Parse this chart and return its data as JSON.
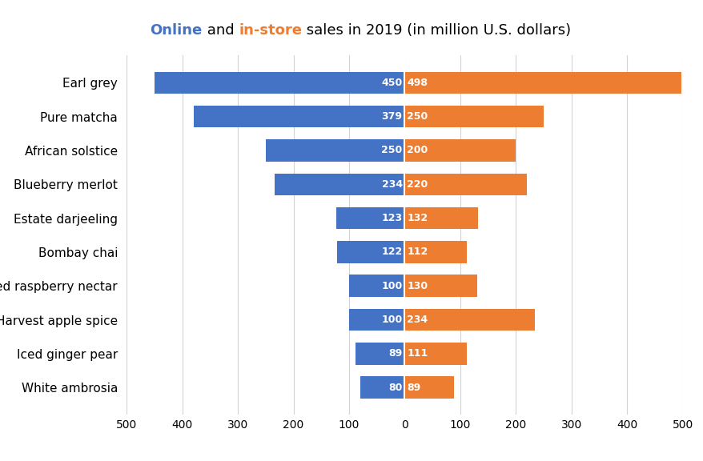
{
  "categories": [
    "White ambrosia",
    "Iced ginger pear",
    "Harvest apple spice",
    "Iced raspberry nectar",
    "Bombay chai",
    "Estate darjeeling",
    "Blueberry merlot",
    "African solstice",
    "Pure matcha",
    "Earl grey"
  ],
  "online": [
    80,
    89,
    100,
    100,
    122,
    123,
    234,
    250,
    379,
    450
  ],
  "instore": [
    89,
    111,
    234,
    130,
    112,
    132,
    220,
    200,
    250,
    498
  ],
  "online_color": "#4472C4",
  "instore_color": "#ED7D31",
  "title_online": "Online",
  "title_instore": "in-store",
  "title_suffix": " sales in 2019 (in million U.S. dollars)",
  "title_online_color": "#4472C4",
  "title_instore_color": "#ED7D31",
  "title_black_color": "#000000",
  "xlim_left": -500,
  "xlim_right": 500,
  "xticks": [
    -500,
    -400,
    -300,
    -200,
    -100,
    0,
    100,
    200,
    300,
    400,
    500
  ],
  "xtick_labels": [
    "500",
    "400",
    "300",
    "200",
    "100",
    "0",
    "100",
    "200",
    "300",
    "400",
    "500"
  ],
  "bar_height": 0.65,
  "label_fontsize": 9,
  "tick_fontsize": 10,
  "category_fontsize": 11,
  "title_fontsize": 13,
  "background_color": "#FFFFFF",
  "grid_color": "#D3D3D3"
}
